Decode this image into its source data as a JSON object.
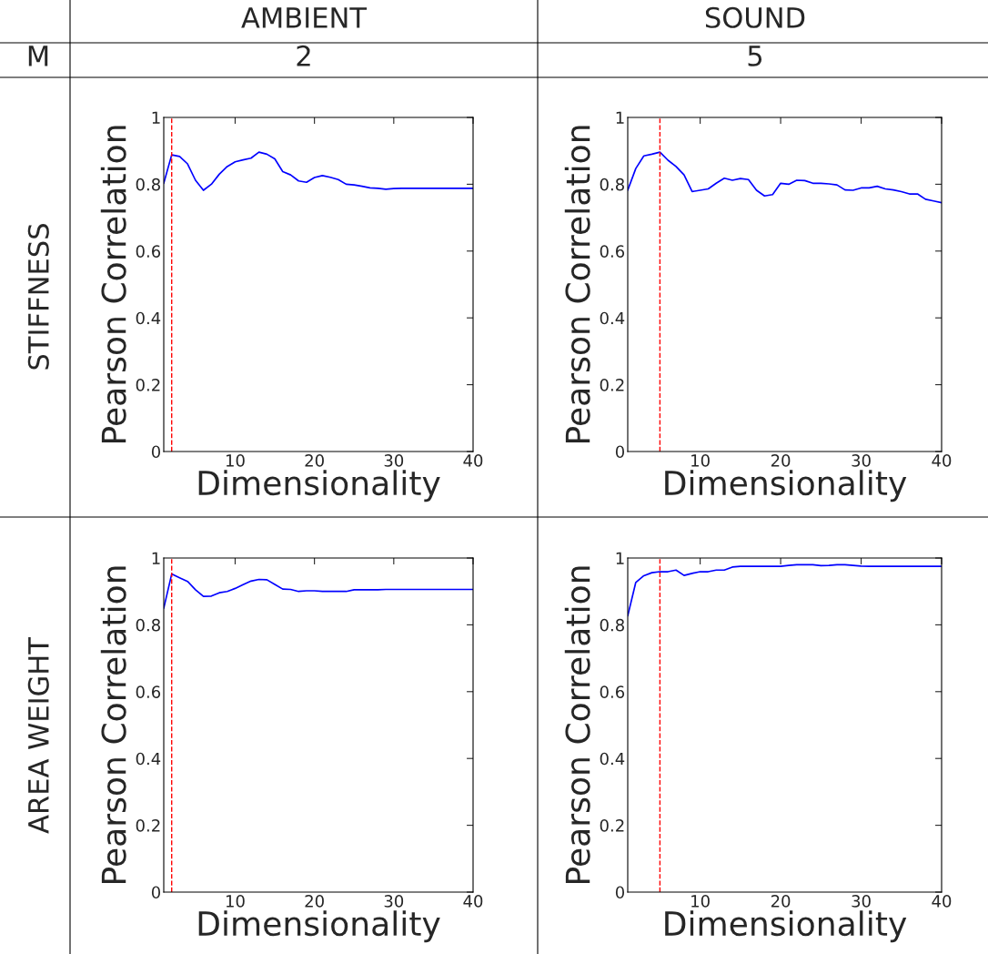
{
  "chart_data": [
    {
      "type": "other",
      "annotations": [
        "AMBIENT",
        "SOUND",
        "M",
        "2",
        "5",
        "STIFFNESS",
        "AREA WEIGHT"
      ]
    },
    {
      "type": "line",
      "xlabel": "Dimensionality",
      "ylabel": "Pearson Correlation",
      "xlim": [
        1,
        40
      ],
      "xticks": [
        10,
        20,
        30,
        40
      ],
      "ylim": [
        0,
        1
      ],
      "yticks": [
        0,
        0.2,
        0.4,
        0.6,
        0.8,
        1
      ],
      "grid": false,
      "x": [
        1,
        2,
        3,
        4,
        5,
        6,
        7,
        8,
        9,
        10,
        11,
        12,
        13,
        14,
        15,
        16,
        17,
        18,
        19,
        20,
        21,
        22,
        23,
        24,
        25,
        26,
        27,
        28,
        29,
        30,
        31,
        32,
        33,
        34,
        35,
        36,
        37,
        38,
        39,
        40
      ],
      "series": [
        {
          "color": "#0000ff",
          "values": [
            0.803,
            0.888,
            0.883,
            0.861,
            0.812,
            0.782,
            0.8,
            0.83,
            0.853,
            0.867,
            0.873,
            0.878,
            0.896,
            0.89,
            0.876,
            0.838,
            0.828,
            0.81,
            0.806,
            0.82,
            0.826,
            0.821,
            0.814,
            0.8,
            0.798,
            0.794,
            0.789,
            0.788,
            0.785,
            0.787,
            0.788,
            0.788,
            0.788,
            0.788,
            0.788,
            0.788,
            0.788,
            0.788,
            0.788,
            0.788
          ]
        }
      ],
      "ref_lines": [
        {
          "axis": "x",
          "value": 2,
          "color": "#ff0000",
          "line_style": "dashed"
        }
      ]
    },
    {
      "type": "line",
      "xlabel": "Dimensionality",
      "ylabel": "Pearson Correlation",
      "xlim": [
        1,
        40
      ],
      "xticks": [
        10,
        20,
        30,
        40
      ],
      "ylim": [
        0,
        1
      ],
      "yticks": [
        0,
        0.2,
        0.4,
        0.6,
        0.8,
        1
      ],
      "grid": false,
      "x": [
        1,
        2,
        3,
        4,
        5,
        6,
        7,
        8,
        9,
        10,
        11,
        12,
        13,
        14,
        15,
        16,
        17,
        18,
        19,
        20,
        21,
        22,
        23,
        24,
        25,
        26,
        27,
        28,
        29,
        30,
        31,
        32,
        33,
        34,
        35,
        36,
        37,
        38,
        39,
        40
      ],
      "series": [
        {
          "color": "#0000ff",
          "values": [
            0.782,
            0.847,
            0.885,
            0.89,
            0.896,
            0.872,
            0.853,
            0.828,
            0.778,
            0.782,
            0.786,
            0.803,
            0.818,
            0.812,
            0.817,
            0.814,
            0.782,
            0.765,
            0.769,
            0.803,
            0.8,
            0.812,
            0.811,
            0.803,
            0.803,
            0.801,
            0.798,
            0.783,
            0.782,
            0.789,
            0.789,
            0.794,
            0.786,
            0.783,
            0.778,
            0.771,
            0.771,
            0.755,
            0.75,
            0.745
          ]
        }
      ],
      "ref_lines": [
        {
          "axis": "x",
          "value": 5,
          "color": "#ff0000",
          "line_style": "dashed"
        }
      ]
    },
    {
      "type": "line",
      "xlabel": "Dimensionality",
      "ylabel": "Pearson Correlation",
      "xlim": [
        1,
        40
      ],
      "xticks": [
        10,
        20,
        30,
        40
      ],
      "ylim": [
        0,
        1
      ],
      "yticks": [
        0,
        0.2,
        0.4,
        0.6,
        0.8,
        1
      ],
      "grid": false,
      "x": [
        1,
        2,
        3,
        4,
        5,
        6,
        7,
        8,
        9,
        10,
        11,
        12,
        13,
        14,
        15,
        16,
        17,
        18,
        19,
        20,
        21,
        22,
        23,
        24,
        25,
        26,
        27,
        28,
        29,
        30,
        31,
        32,
        33,
        34,
        35,
        36,
        37,
        38,
        39,
        40
      ],
      "series": [
        {
          "color": "#0000ff",
          "values": [
            0.85,
            0.952,
            0.941,
            0.93,
            0.905,
            0.885,
            0.886,
            0.896,
            0.9,
            0.909,
            0.92,
            0.931,
            0.936,
            0.935,
            0.921,
            0.907,
            0.906,
            0.9,
            0.902,
            0.902,
            0.9,
            0.9,
            0.9,
            0.9,
            0.905,
            0.905,
            0.905,
            0.905,
            0.906,
            0.906,
            0.906,
            0.906,
            0.906,
            0.906,
            0.906,
            0.906,
            0.906,
            0.906,
            0.906,
            0.906
          ]
        }
      ],
      "ref_lines": [
        {
          "axis": "x",
          "value": 2,
          "color": "#ff0000",
          "line_style": "dashed"
        }
      ]
    },
    {
      "type": "line",
      "xlabel": "Dimensionality",
      "ylabel": "Pearson Correlation",
      "xlim": [
        1,
        40
      ],
      "xticks": [
        10,
        20,
        30,
        40
      ],
      "ylim": [
        0,
        1
      ],
      "yticks": [
        0,
        0.2,
        0.4,
        0.6,
        0.8,
        1
      ],
      "grid": false,
      "x": [
        1,
        2,
        3,
        4,
        5,
        6,
        7,
        8,
        9,
        10,
        11,
        12,
        13,
        14,
        15,
        16,
        17,
        18,
        19,
        20,
        21,
        22,
        23,
        24,
        25,
        26,
        27,
        28,
        29,
        30,
        31,
        32,
        33,
        34,
        35,
        36,
        37,
        38,
        39,
        40
      ],
      "series": [
        {
          "color": "#0000ff",
          "values": [
            0.827,
            0.927,
            0.947,
            0.956,
            0.959,
            0.959,
            0.964,
            0.948,
            0.954,
            0.959,
            0.959,
            0.964,
            0.964,
            0.973,
            0.975,
            0.975,
            0.975,
            0.975,
            0.975,
            0.975,
            0.978,
            0.98,
            0.98,
            0.98,
            0.977,
            0.978,
            0.98,
            0.98,
            0.978,
            0.976,
            0.975,
            0.975,
            0.975,
            0.975,
            0.975,
            0.975,
            0.975,
            0.975,
            0.975,
            0.975
          ]
        }
      ],
      "ref_lines": [
        {
          "axis": "x",
          "value": 5,
          "color": "#ff0000",
          "line_style": "dashed"
        }
      ]
    }
  ]
}
